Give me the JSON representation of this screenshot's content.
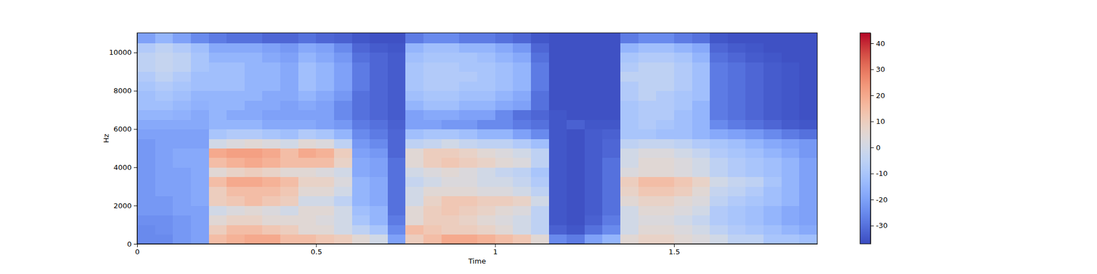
{
  "chart_data": {
    "type": "heatmap",
    "x_label": "Time",
    "y_label": "Hz",
    "xlim": [
      0,
      1.9
    ],
    "xticks": [
      0,
      0.5,
      1,
      1.5
    ],
    "ylim": [
      0,
      11025
    ],
    "yticks": [
      0,
      2000,
      4000,
      6000,
      8000,
      10000
    ],
    "color_range": [
      -37,
      44
    ],
    "color_ticks": [
      -30,
      -20,
      -10,
      0,
      10,
      20,
      30,
      40
    ],
    "x": [
      0,
      0.05,
      0.1,
      0.15,
      0.2,
      0.25,
      0.3,
      0.35,
      0.4,
      0.45,
      0.5,
      0.55,
      0.6,
      0.65,
      0.7,
      0.75,
      0.8,
      0.85,
      0.9,
      0.95,
      1,
      1.05,
      1.1,
      1.15,
      1.2,
      1.25,
      1.3,
      1.35,
      1.4,
      1.45,
      1.5,
      1.55,
      1.6,
      1.65,
      1.7,
      1.75,
      1.8,
      1.85
    ],
    "y": [
      0,
      500,
      1000,
      1500,
      2000,
      2500,
      3000,
      3500,
      4000,
      4500,
      5000,
      5500,
      6000,
      6500,
      7000,
      7500,
      8000,
      8500,
      9000,
      9500,
      10000,
      10500
    ],
    "z": [
      [
        -25,
        -25,
        -22,
        -20,
        15,
        18,
        20,
        20,
        15,
        15,
        12,
        10,
        5,
        0,
        -20,
        10,
        15,
        20,
        20,
        18,
        15,
        12,
        5,
        -25,
        -28,
        -20,
        -15,
        5,
        8,
        8,
        5,
        3,
        0,
        -5,
        -5,
        -10,
        -10,
        -12
      ],
      [
        -25,
        -24,
        -22,
        -20,
        10,
        15,
        15,
        12,
        10,
        5,
        5,
        0,
        -5,
        -10,
        -25,
        15,
        12,
        10,
        10,
        8,
        5,
        0,
        -5,
        -33,
        -35,
        -30,
        -25,
        0,
        5,
        5,
        3,
        0,
        -5,
        -8,
        -10,
        -12,
        -15,
        -18
      ],
      [
        -24,
        -24,
        -22,
        -20,
        5,
        8,
        8,
        5,
        5,
        5,
        3,
        0,
        -10,
        -15,
        -28,
        5,
        10,
        10,
        8,
        5,
        3,
        0,
        -5,
        -35,
        -36,
        -33,
        -28,
        0,
        3,
        3,
        0,
        -3,
        -8,
        -10,
        -12,
        -15,
        -18,
        -20
      ],
      [
        -22,
        -22,
        -20,
        -20,
        0,
        3,
        5,
        3,
        0,
        5,
        5,
        0,
        -12,
        -15,
        -30,
        5,
        10,
        12,
        10,
        8,
        5,
        3,
        -5,
        -35,
        -36,
        -34,
        -30,
        0,
        5,
        5,
        3,
        0,
        -8,
        -10,
        -12,
        -15,
        -18,
        -20
      ],
      [
        -22,
        -22,
        -20,
        -18,
        10,
        12,
        15,
        12,
        10,
        0,
        0,
        -5,
        -15,
        -18,
        -30,
        0,
        8,
        12,
        12,
        10,
        10,
        8,
        0,
        -35,
        -36,
        -34,
        -30,
        5,
        8,
        8,
        5,
        3,
        -5,
        -8,
        -10,
        -12,
        -15,
        -20
      ],
      [
        -22,
        -20,
        -20,
        -18,
        10,
        15,
        15,
        15,
        12,
        5,
        5,
        0,
        -15,
        -18,
        -30,
        0,
        5,
        5,
        5,
        3,
        3,
        0,
        -5,
        -35,
        -36,
        -34,
        -30,
        8,
        12,
        12,
        10,
        5,
        -3,
        -5,
        -8,
        -12,
        -15,
        -20
      ],
      [
        -22,
        -20,
        -20,
        -18,
        15,
        20,
        20,
        18,
        15,
        8,
        8,
        3,
        -15,
        -18,
        -30,
        -3,
        0,
        3,
        3,
        0,
        0,
        -3,
        -8,
        -35,
        -36,
        -34,
        -30,
        10,
        15,
        15,
        12,
        8,
        0,
        -3,
        -5,
        -10,
        -15,
        -20
      ],
      [
        -22,
        -20,
        -20,
        -18,
        5,
        8,
        10,
        8,
        5,
        5,
        3,
        0,
        -18,
        -20,
        -30,
        0,
        3,
        5,
        3,
        0,
        -3,
        -5,
        -10,
        -35,
        -36,
        -34,
        -30,
        3,
        5,
        5,
        3,
        0,
        -5,
        -8,
        -10,
        -12,
        -15,
        -20
      ],
      [
        -22,
        -20,
        -18,
        -18,
        15,
        18,
        20,
        18,
        15,
        15,
        15,
        8,
        -18,
        -20,
        -30,
        5,
        10,
        12,
        10,
        8,
        5,
        3,
        -5,
        -35,
        -36,
        -34,
        -30,
        0,
        5,
        5,
        3,
        0,
        -5,
        -8,
        -10,
        -12,
        -15,
        -20
      ],
      [
        -22,
        -20,
        -18,
        -18,
        20,
        22,
        22,
        20,
        15,
        20,
        18,
        10,
        -20,
        -22,
        -32,
        5,
        10,
        10,
        8,
        5,
        3,
        0,
        -5,
        -35,
        -36,
        -34,
        -32,
        0,
        3,
        3,
        0,
        -3,
        -8,
        -10,
        -12,
        -15,
        -18,
        -22
      ],
      [
        -22,
        -20,
        -20,
        -20,
        0,
        3,
        5,
        3,
        0,
        5,
        3,
        -5,
        -22,
        -25,
        -32,
        -5,
        -3,
        0,
        -3,
        -5,
        -5,
        -8,
        -12,
        -35,
        -36,
        -34,
        -32,
        -5,
        -3,
        -3,
        -5,
        -8,
        -10,
        -12,
        -15,
        -18,
        -20,
        -22
      ],
      [
        -20,
        -20,
        -20,
        -20,
        -10,
        -8,
        -8,
        -10,
        -12,
        -8,
        -10,
        -15,
        -25,
        -28,
        -32,
        -12,
        -10,
        -10,
        -12,
        -15,
        -15,
        -20,
        -25,
        -35,
        -36,
        -34,
        -33,
        -10,
        -10,
        -12,
        -12,
        -15,
        -18,
        -20,
        -22,
        -25,
        -28,
        -30
      ],
      [
        -18,
        -18,
        -18,
        -18,
        -15,
        -15,
        -15,
        -18,
        -18,
        -18,
        -20,
        -22,
        -28,
        -30,
        -33,
        -20,
        -20,
        -22,
        -22,
        -25,
        -25,
        -28,
        -30,
        -35,
        -33,
        -35,
        -35,
        -10,
        -8,
        -10,
        -12,
        -15,
        -25,
        -28,
        -30,
        -32,
        -34,
        -35
      ],
      [
        -15,
        -15,
        -16,
        -18,
        -15,
        -18,
        -18,
        -20,
        -20,
        -20,
        -20,
        -25,
        -30,
        -32,
        -34,
        -20,
        -18,
        -18,
        -20,
        -20,
        -25,
        -30,
        -32,
        -35,
        -36,
        -36,
        -36,
        -10,
        -8,
        -8,
        -12,
        -15,
        -28,
        -30,
        -32,
        -34,
        -35,
        -36
      ],
      [
        -12,
        -12,
        -14,
        -16,
        -15,
        -15,
        -18,
        -18,
        -20,
        -18,
        -20,
        -25,
        -30,
        -32,
        -34,
        -15,
        -12,
        -12,
        -15,
        -15,
        -18,
        -20,
        -30,
        -36,
        -36,
        -36,
        -36,
        -10,
        -8,
        -8,
        -10,
        -15,
        -28,
        -30,
        -32,
        -34,
        -35,
        -36
      ],
      [
        -12,
        -10,
        -12,
        -15,
        -15,
        -15,
        -15,
        -18,
        -18,
        -15,
        -18,
        -22,
        -30,
        -32,
        -34,
        -12,
        -10,
        -10,
        -12,
        -12,
        -15,
        -18,
        -30,
        -36,
        -36,
        -36,
        -36,
        -8,
        -5,
        -8,
        -10,
        -12,
        -28,
        -30,
        -32,
        -34,
        -35,
        -36
      ],
      [
        -10,
        -8,
        -10,
        -12,
        -12,
        -12,
        -15,
        -15,
        -18,
        -12,
        -15,
        -20,
        -28,
        -32,
        -34,
        -10,
        -8,
        -8,
        -10,
        -10,
        -12,
        -15,
        -28,
        -36,
        -36,
        -36,
        -36,
        -8,
        -5,
        -5,
        -8,
        -12,
        -28,
        -30,
        -32,
        -34,
        -35,
        -36
      ],
      [
        -8,
        -5,
        -8,
        -12,
        -12,
        -12,
        -15,
        -15,
        -18,
        -12,
        -15,
        -20,
        -28,
        -32,
        -34,
        -10,
        -8,
        -8,
        -8,
        -10,
        -12,
        -15,
        -28,
        -36,
        -36,
        -36,
        -36,
        -5,
        -5,
        -5,
        -8,
        -12,
        -28,
        -30,
        -32,
        -34,
        -35,
        -36
      ],
      [
        -5,
        -3,
        -5,
        -10,
        -12,
        -12,
        -15,
        -15,
        -18,
        -12,
        -15,
        -20,
        -28,
        -32,
        -34,
        -10,
        -8,
        -8,
        -10,
        -10,
        -12,
        -15,
        -28,
        -36,
        -36,
        -36,
        -36,
        -8,
        -5,
        -5,
        -8,
        -12,
        -28,
        -30,
        -32,
        -34,
        -35,
        -36
      ],
      [
        -5,
        -3,
        -5,
        -10,
        -15,
        -15,
        -15,
        -18,
        -20,
        -15,
        -18,
        -22,
        -30,
        -32,
        -34,
        -12,
        -10,
        -10,
        -10,
        -12,
        -15,
        -18,
        -30,
        -36,
        -36,
        -36,
        -36,
        -10,
        -8,
        -8,
        -10,
        -15,
        -30,
        -32,
        -34,
        -35,
        -36,
        -36
      ],
      [
        -8,
        -5,
        -8,
        -12,
        -18,
        -18,
        -18,
        -20,
        -22,
        -18,
        -20,
        -25,
        -32,
        -34,
        -35,
        -15,
        -12,
        -12,
        -15,
        -15,
        -18,
        -22,
        -32,
        -36,
        -36,
        -36,
        -36,
        -15,
        -12,
        -12,
        -15,
        -18,
        -32,
        -34,
        -35,
        -36,
        -36,
        -36
      ],
      [
        -20,
        -15,
        -20,
        -25,
        -28,
        -30,
        -30,
        -32,
        -32,
        -30,
        -32,
        -33,
        -35,
        -36,
        -36,
        -28,
        -25,
        -25,
        -28,
        -28,
        -30,
        -32,
        -35,
        -36,
        -36,
        -36,
        -36,
        -28,
        -25,
        -25,
        -28,
        -30,
        -35,
        -36,
        -36,
        -36,
        -36,
        -36
      ]
    ]
  }
}
